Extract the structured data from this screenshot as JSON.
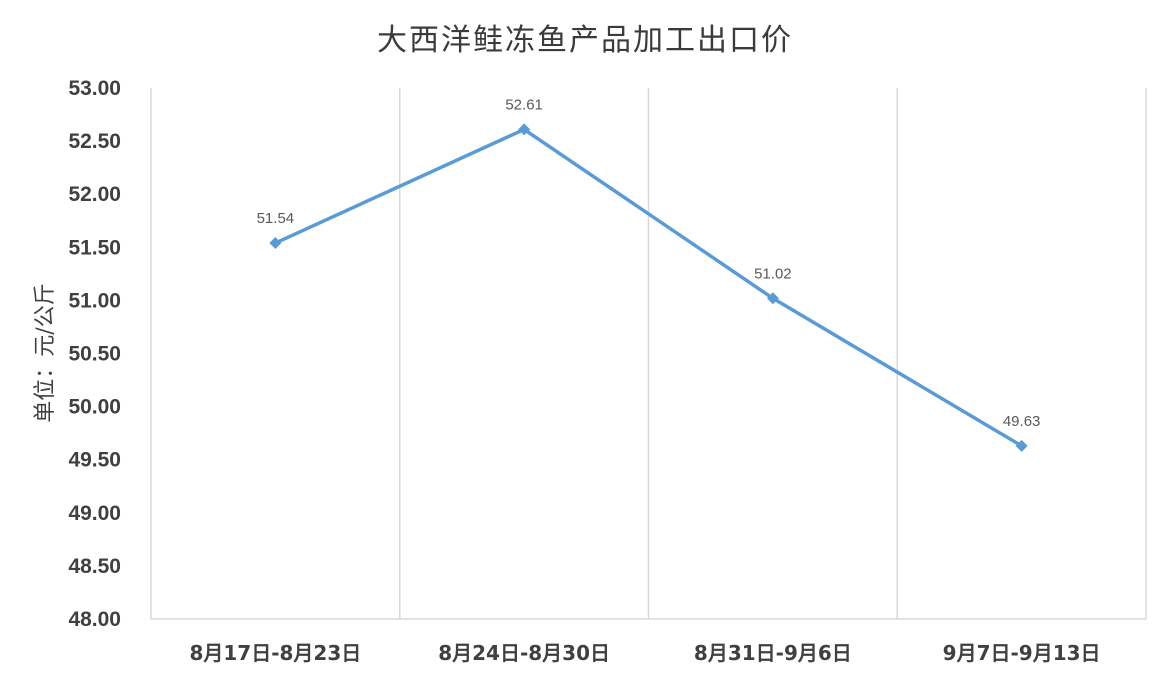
{
  "chart_data": {
    "type": "line",
    "title": "大西洋鲑冻鱼产品加工出口价",
    "ylabel": "单位：元/公斤",
    "xlabel": "",
    "categories": [
      "8月17日-8月23日",
      "8月24日-8月30日",
      "8月31日-9月6日",
      "9月7日-9月13日"
    ],
    "series": [
      {
        "values": [
          51.54,
          52.61,
          51.02,
          49.63
        ]
      }
    ],
    "data_labels": [
      "51.54",
      "52.61",
      "51.02",
      "49.63"
    ],
    "ylim": [
      48.0,
      53.0
    ],
    "yticks": [
      "48.00",
      "48.50",
      "49.00",
      "49.50",
      "50.00",
      "50.50",
      "51.00",
      "51.50",
      "52.00",
      "52.50",
      "53.00"
    ],
    "grid": "vertical",
    "legend": "none",
    "colors": {
      "line": "#5B9BD5",
      "grid": "#D9D9D9",
      "text": "#404040"
    }
  }
}
